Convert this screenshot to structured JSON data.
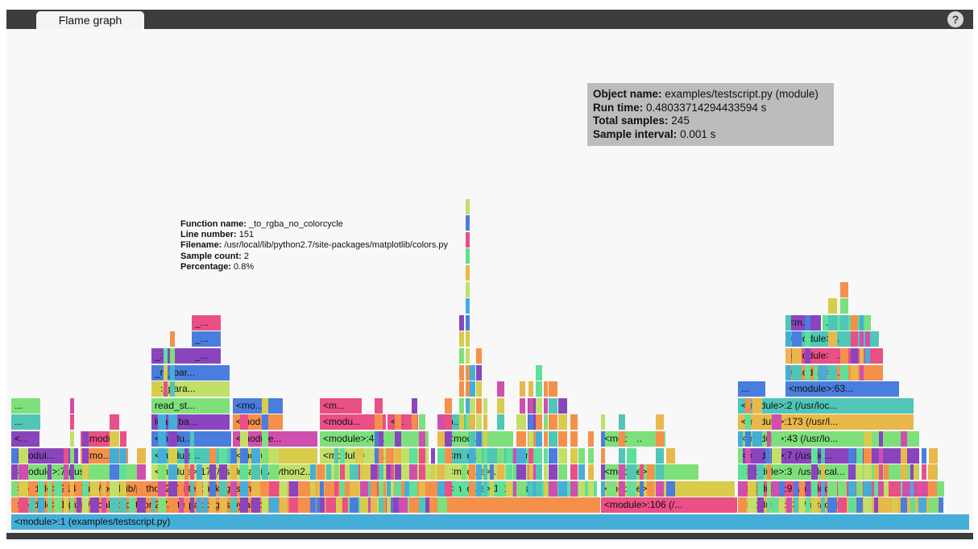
{
  "tabs": [
    {
      "label": "Flame graph"
    }
  ],
  "help_label": "?",
  "info": {
    "object_name_label": "Object name:",
    "object_name": "examples/testscript.py (module)",
    "run_time_label": "Run time:",
    "run_time": "0.48033714294433594 s",
    "total_samples_label": "Total samples:",
    "total_samples": "245",
    "sample_interval_label": "Sample interval:",
    "sample_interval": "0.001 s"
  },
  "tooltip": {
    "function_name_label": "Function name:",
    "function_name": "_to_rgba_no_colorcycle",
    "line_number_label": "Line number:",
    "line_number": "151",
    "filename_label": "Filename:",
    "filename": "/usr/local/lib/python2.7/site-packages/matplotlib/colors.py",
    "sample_count_label": "Sample count:",
    "sample_count": "2",
    "percentage_label": "Percentage:",
    "percentage": "0.8%"
  },
  "frame_labels": [
    "<module>:1 (examples/testscript.py)",
    "<module>:1 (/usr/local/lib/python2.7/site-packages/pylab.py)",
    "<module>:106 (/...",
    "<module>:93 (/usr/local...",
    "<module>:214 (/usr/local/lib/python2.7/site-packages/m...",
    "<module>:101 (/us...",
    "<module>:...",
    "<module>:9 (/usr/local...",
    "<module>:7 (/us...",
    "<module>:17 (/usr/local/lib/python2...",
    "<module>:...",
    "<module>:...",
    "<module>:3 (/usr/local...",
    "<modul...",
    "<mo...",
    "<module...",
    "<modul...",
    "<module>:20...",
    "<modul...",
    "<modu...",
    "<module>:7 (/usr/lo...",
    "<...",
    "<module...",
    "<modu...",
    "<module...",
    "<module>:4 ...",
    "<modul...",
    "<modu...",
    "<module>:43 (/usr/lo...",
    "...",
    "load_ba...",
    "<mod...",
    "<modu...",
    "<...",
    "p...",
    "<module>:173 (/usr/l...",
    "...",
    "read_st...",
    "<mo...",
    "<m...",
    "<module>:2 (/usr/loc...",
    "rc_para...",
    "...",
    "<module>:63...",
    "_rc_par...",
    "<module>:...",
    "_...",
    "_...",
    "<module>:...",
    "_...",
    "<module>...",
    "_...",
    "<m...",
    "...",
    "...",
    "..."
  ],
  "colors": {
    "cyan": "#44aed8",
    "orange": "#f5904a",
    "green": "#7ee07a",
    "yellow": "#d8cc4a",
    "pink": "#ea4f86",
    "purple": "#8a45be",
    "blue": "#4a7ede",
    "lime": "#c2e068",
    "teal": "#4fc6b6",
    "magenta": "#d04fae",
    "amber": "#e8b84a",
    "mint": "#5ee09a"
  }
}
